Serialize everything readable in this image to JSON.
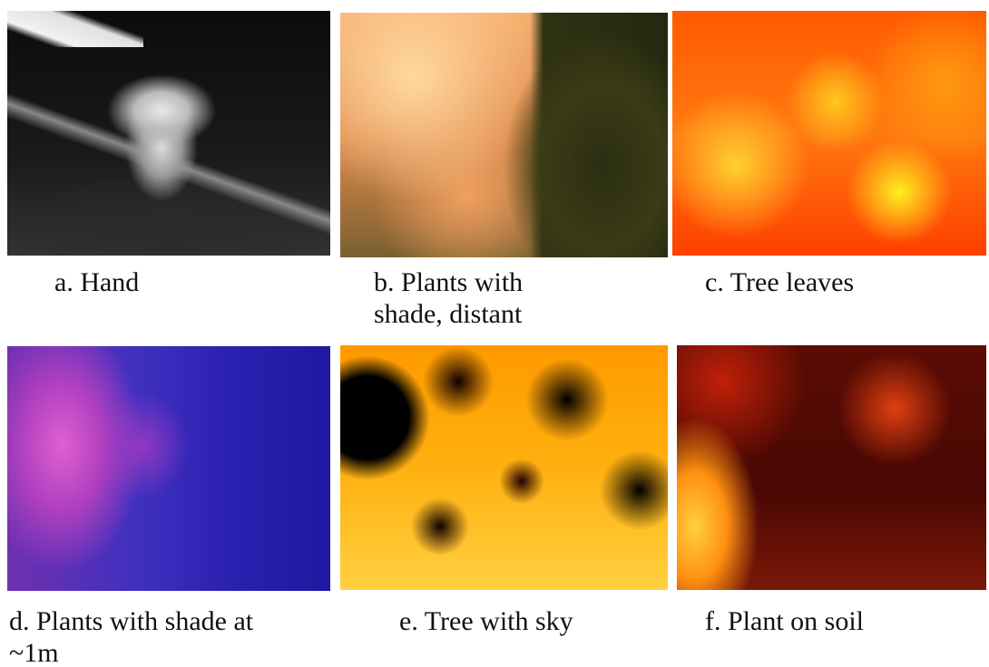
{
  "panels": [
    {
      "caption": [
        "a. Hand"
      ]
    },
    {
      "caption": [
        "b. Plants with",
        "shade, distant"
      ]
    },
    {
      "caption": [
        "c. Tree leaves"
      ]
    },
    {
      "caption": [
        "d. Plants with shade at",
        "~1m"
      ]
    },
    {
      "caption": [
        "e. Tree with sky"
      ]
    },
    {
      "caption": [
        "f. Plant on soil"
      ]
    }
  ]
}
